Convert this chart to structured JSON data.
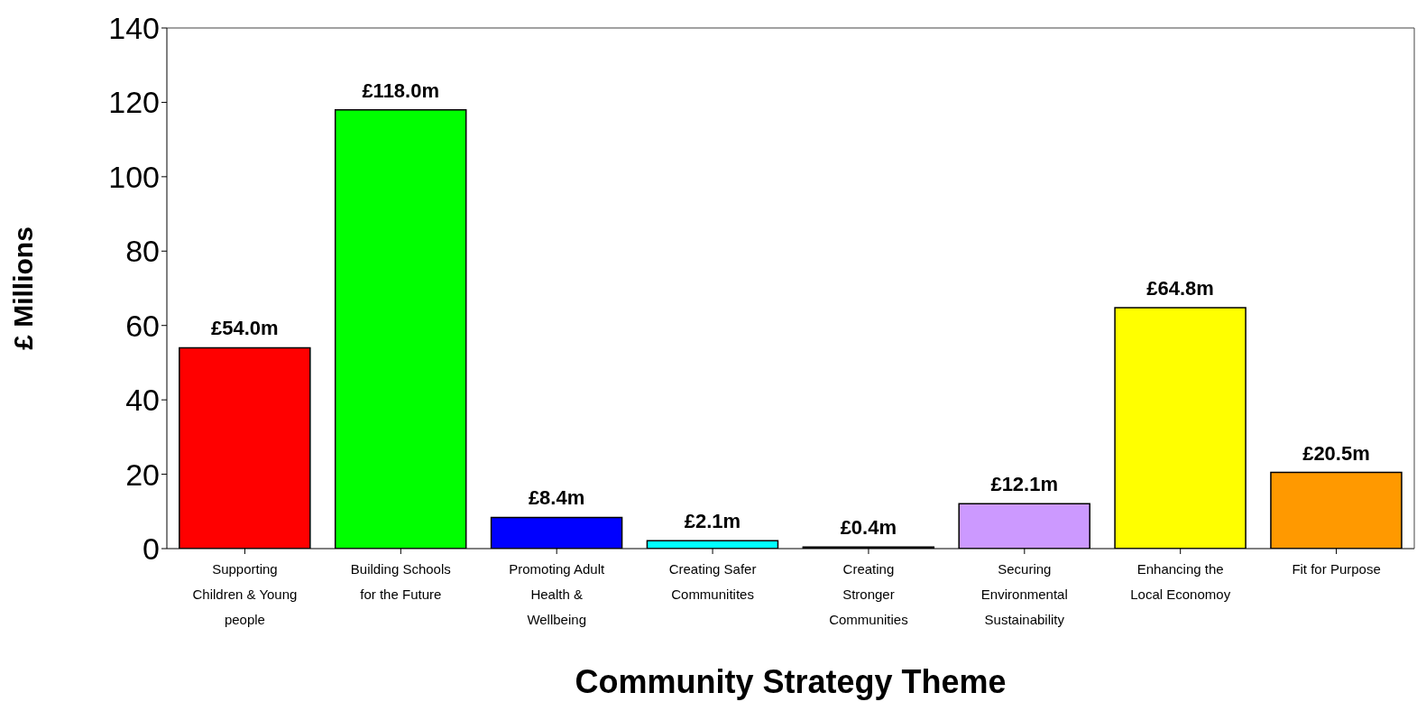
{
  "chart_data": {
    "type": "bar",
    "xlabel": "Community Strategy Theme",
    "ylabel": "£ Millions",
    "categories": [
      "Supporting Children & Young people",
      "Building Schools for the Future",
      "Promoting Adult Health & Wellbeing",
      "Creating Safer Communitites",
      "Creating Stronger Communities",
      "Securing Environmental Sustainability",
      "Enhancing the Local Economoy",
      "Fit for Purpose"
    ],
    "values": [
      54.0,
      118.0,
      8.4,
      2.1,
      0.4,
      12.1,
      64.8,
      20.5
    ],
    "colors": [
      "#ff0000",
      "#00ff00",
      "#0000ff",
      "#00ffff",
      "#000000",
      "#cc99ff",
      "#ffff00",
      "#ff9900"
    ],
    "value_labels": [
      "£54.0m",
      "£118.0m",
      "£8.4m",
      "£2.1m",
      "£0.4m",
      "£12.1m",
      "£64.8m",
      "£20.5m"
    ],
    "ylim": [
      0,
      140
    ],
    "yticks": [
      0,
      20,
      40,
      60,
      80,
      100,
      120,
      140
    ],
    "grid": false,
    "legend": false
  }
}
